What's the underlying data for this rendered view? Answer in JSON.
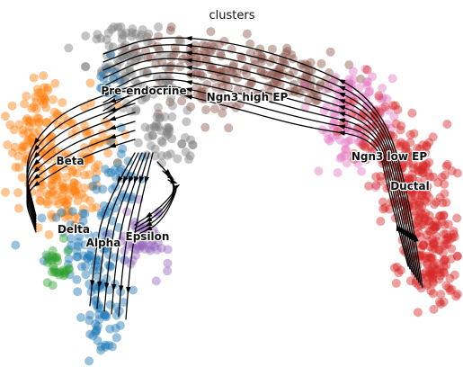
{
  "chart_data": {
    "type": "scatter",
    "title": "clusters",
    "xlabel": "",
    "ylabel": "",
    "grid": false,
    "legend": "on data",
    "series": [
      {
        "name": "Ductal",
        "color": "#d62728"
      },
      {
        "name": "Ngn3 low EP",
        "color": "#e377c2"
      },
      {
        "name": "Ngn3 high EP",
        "color": "#8c564b"
      },
      {
        "name": "Pre-endocrine",
        "color": "#7f7f7f"
      },
      {
        "name": "Beta",
        "color": "#ff7f0e"
      },
      {
        "name": "Alpha",
        "color": "#1f77b4"
      },
      {
        "name": "Delta",
        "color": "#2ca02c"
      },
      {
        "name": "Epsilon",
        "color": "#9467bd"
      }
    ],
    "overlay": "velocity streamlines"
  }
}
